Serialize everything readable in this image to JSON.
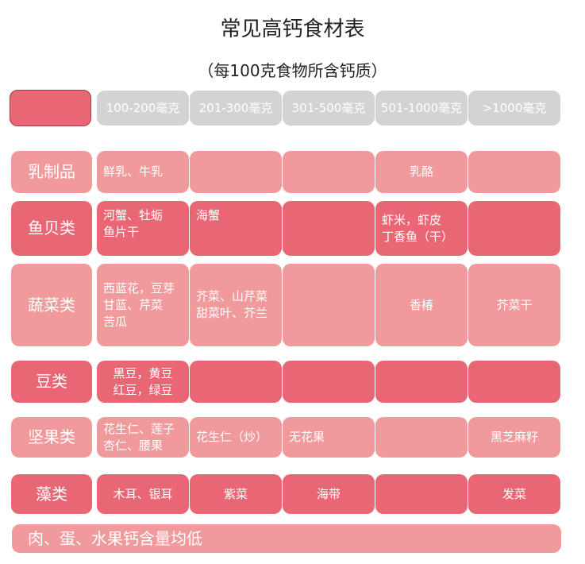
{
  "title": "常见高钙食材表",
  "subtitle": "（每100克食物所含钙质）",
  "colors": {
    "light": "#f19a9c",
    "dark": "#e96774",
    "header": "#d3d3d3"
  },
  "columns": [
    "100-200毫克",
    "201-300毫克",
    "301-500毫克",
    "501-1000毫克",
    ">1000毫克"
  ],
  "rows": [
    {
      "label": "乳制品",
      "cells": [
        [
          "鲜乳、牛乳"
        ],
        [],
        [],
        [
          "乳酪"
        ],
        []
      ]
    },
    {
      "label": "鱼贝类",
      "cells": [
        [
          "河蟹、牡蛎",
          "鱼片干"
        ],
        [
          "海蟹"
        ],
        [],
        [
          "虾米，虾皮",
          "丁香鱼（干）"
        ],
        []
      ]
    },
    {
      "label": "蔬菜类",
      "cells": [
        [
          "西蓝花，豆芽",
          "甘蓝、芹菜",
          "苦瓜"
        ],
        [
          "芥菜、山芹菜",
          "甜菜叶、芥兰"
        ],
        [],
        [
          "香椿"
        ],
        [
          "芥菜干"
        ]
      ]
    },
    {
      "label": "豆类",
      "cells": [
        [
          "黑豆，黄豆",
          "红豆，绿豆"
        ],
        [],
        [],
        [],
        []
      ]
    },
    {
      "label": "坚果类",
      "cells": [
        [
          "花生仁、莲子",
          "杏仁、腰果"
        ],
        [
          "花生仁（炒）"
        ],
        [
          "无花果"
        ],
        [],
        [
          "黑芝麻籽"
        ]
      ]
    },
    {
      "label": "藻类",
      "cells": [
        [
          "木耳、银耳"
        ],
        [
          "紫菜"
        ],
        [
          "海带"
        ],
        [],
        [
          "发菜"
        ]
      ]
    }
  ],
  "footer": "肉、蛋、水果钙含量均低"
}
